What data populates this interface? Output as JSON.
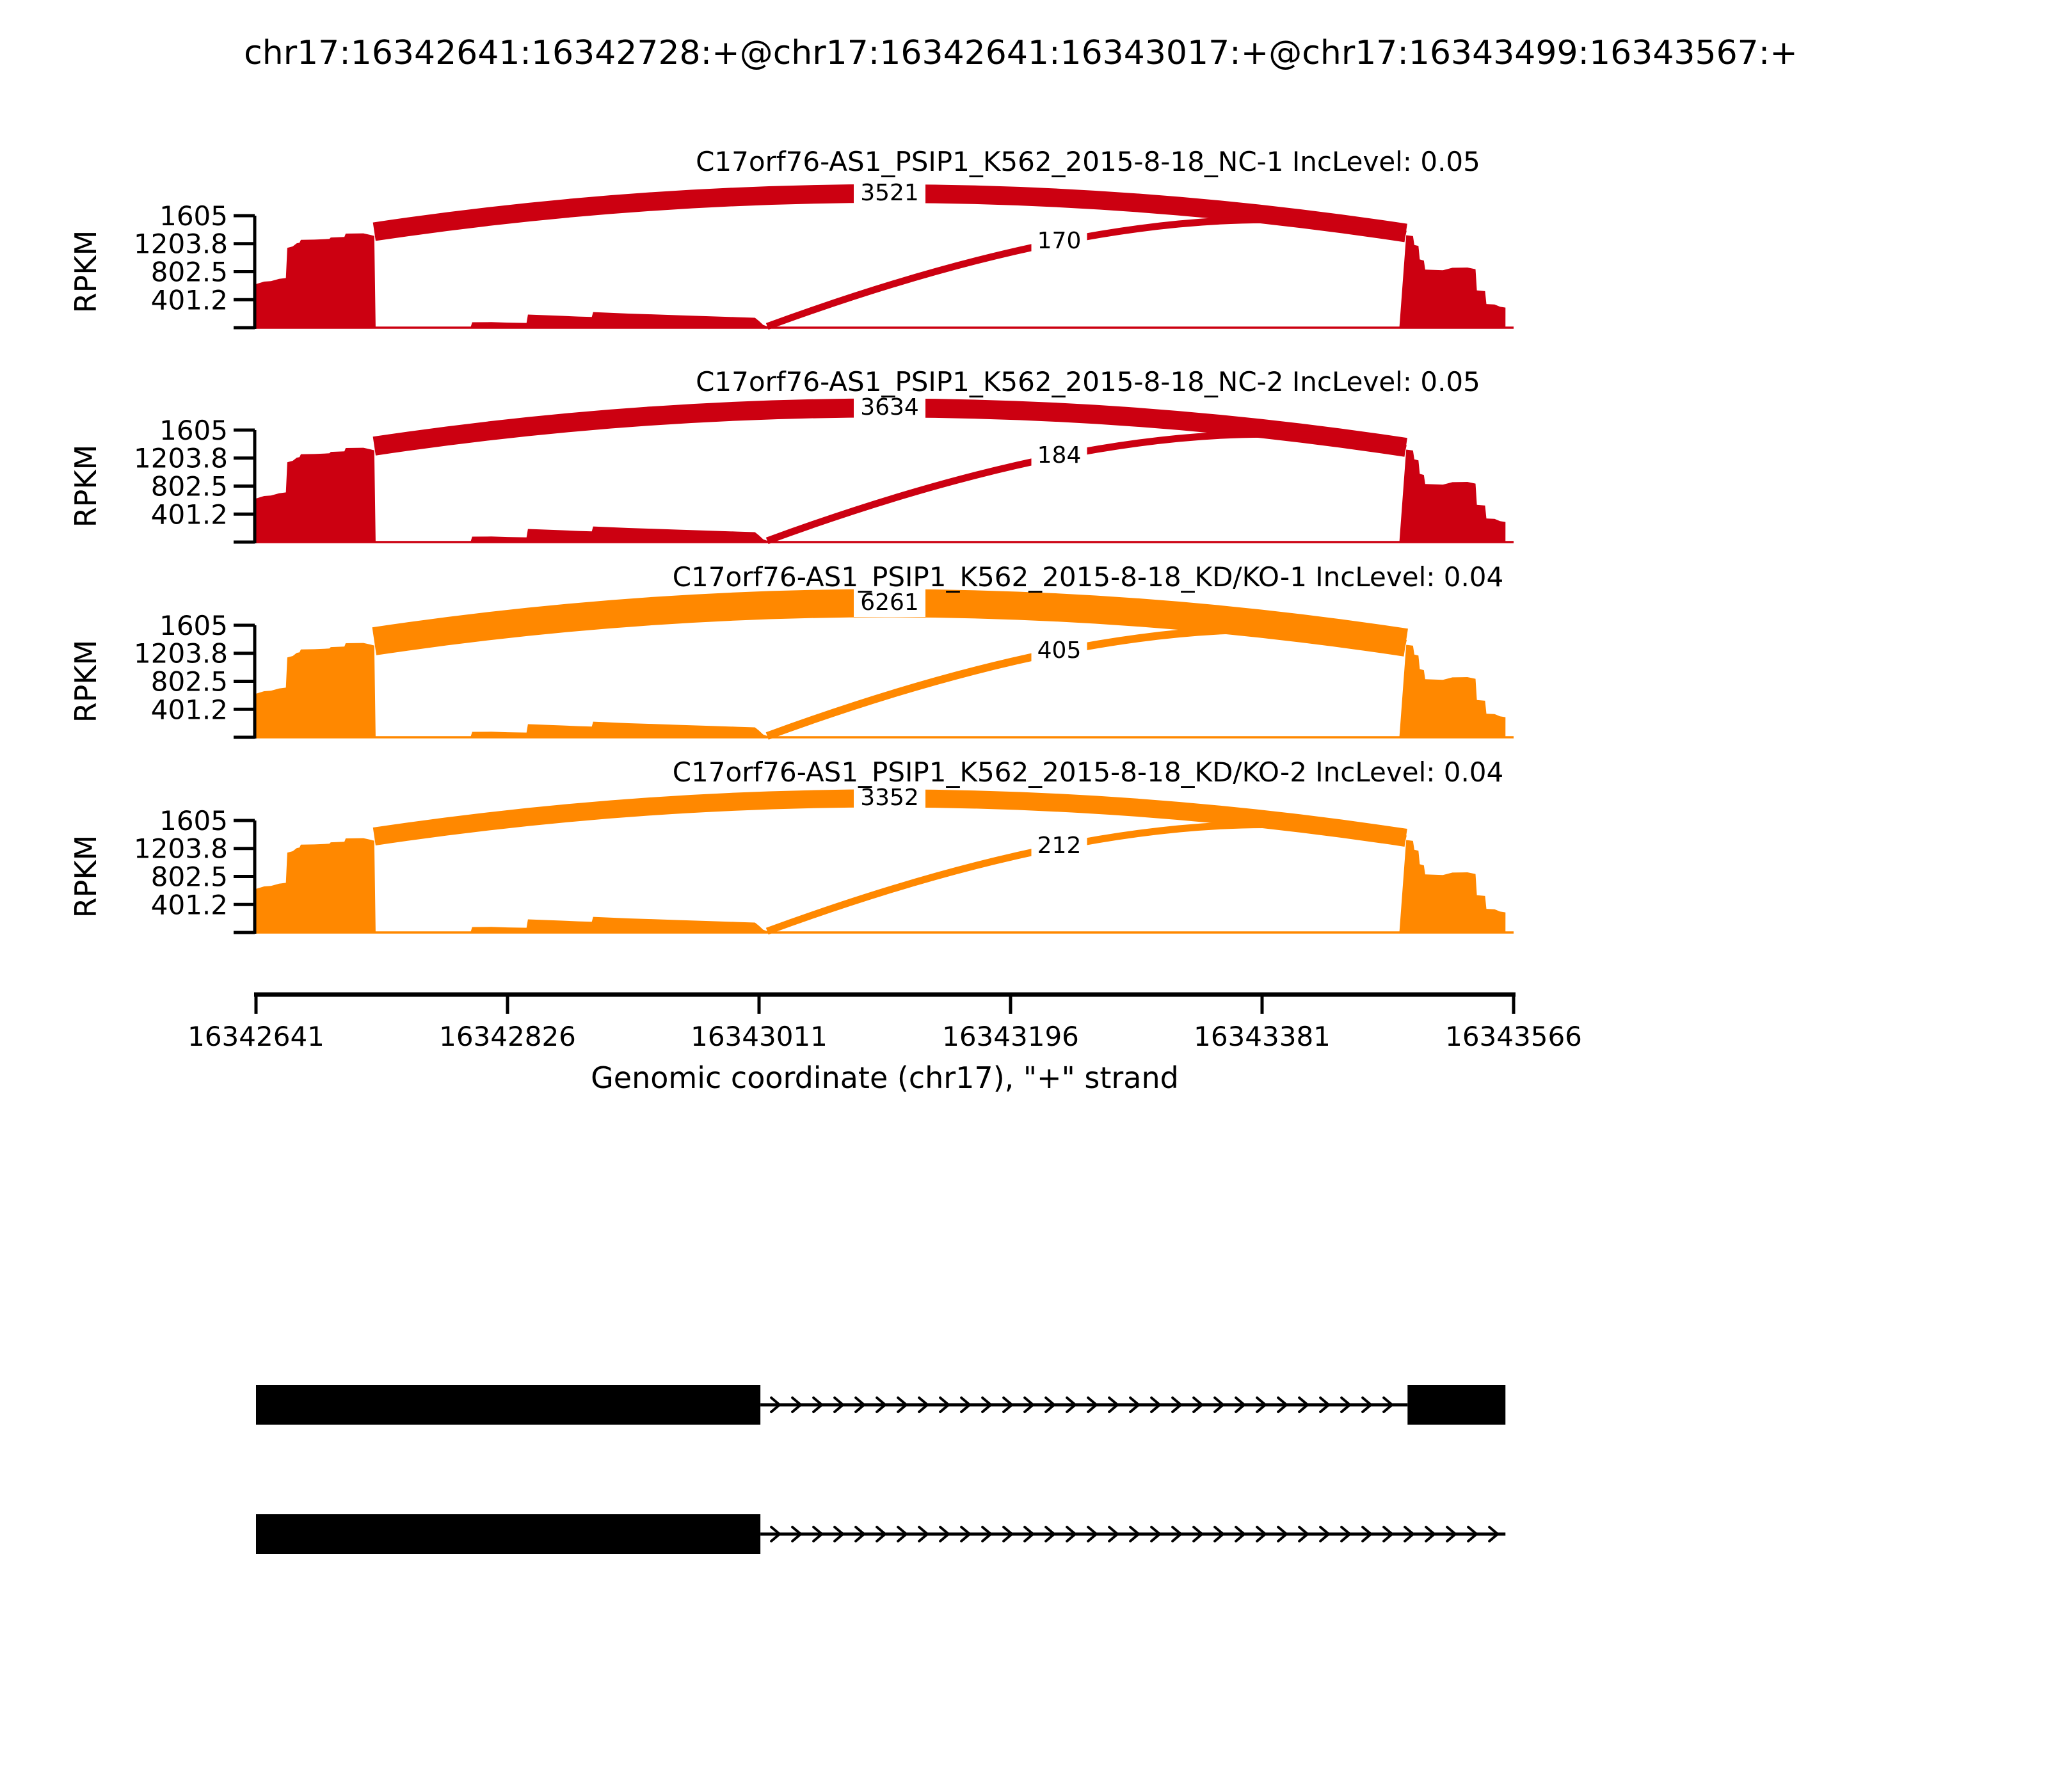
{
  "title": "chr17:16342641:16342728:+@chr17:16342641:16343017:+@chr17:16343499:16343567:+",
  "y_axis": {
    "label": "RPKM",
    "ticks": [
      1605,
      1203.8,
      802.5,
      401.2
    ],
    "max": 1605
  },
  "x_axis": {
    "label": "Genomic coordinate (chr17), \"+\" strand",
    "ticks": [
      16342641,
      16342826,
      16343011,
      16343196,
      16343381,
      16343566
    ],
    "min": 16342641,
    "max": 16343566
  },
  "chart_data": {
    "type": "sashimi",
    "ylabel": "RPKM",
    "xlabel": "Genomic coordinate (chr17), \"+\" strand",
    "y_ticks": [
      1605,
      1203.8,
      802.5,
      401.2
    ],
    "x_ticks": [
      16342641,
      16342826,
      16343011,
      16343196,
      16343381,
      16343566
    ],
    "tracks": [
      {
        "id": "NC-1",
        "label": "C17orf76-AS1_PSIP1_K562_2015-8-18_NC-1 IncLevel: 0.05",
        "inc_level": "0.05",
        "color": "#CC0011",
        "junctions": [
          {
            "from": 16342728,
            "to": 16343499,
            "reads": 3521,
            "style": "thick"
          },
          {
            "from": 16343017,
            "to": 16343499,
            "reads": 170,
            "style": "thin"
          }
        ]
      },
      {
        "id": "NC-2",
        "label": "C17orf76-AS1_PSIP1_K562_2015-8-18_NC-2 IncLevel: 0.05",
        "inc_level": "0.05",
        "color": "#CC0011",
        "junctions": [
          {
            "from": 16342728,
            "to": 16343499,
            "reads": 3634,
            "style": "thick"
          },
          {
            "from": 16343017,
            "to": 16343499,
            "reads": 184,
            "style": "thin"
          }
        ]
      },
      {
        "id": "KD/KO-1",
        "label": "C17orf76-AS1_PSIP1_K562_2015-8-18_KD/KO-1 IncLevel: 0.04",
        "inc_level": "0.04",
        "color": "#FF8800",
        "junctions": [
          {
            "from": 16342728,
            "to": 16343499,
            "reads": 6261,
            "style": "thick"
          },
          {
            "from": 16343017,
            "to": 16343499,
            "reads": 405,
            "style": "thin"
          }
        ]
      },
      {
        "id": "KD/KO-2",
        "label": "C17orf76-AS1_PSIP1_K562_2015-8-18_KD/KO-2 IncLevel: 0.04",
        "inc_level": "0.04",
        "color": "#FF8800",
        "junctions": [
          {
            "from": 16342728,
            "to": 16343499,
            "reads": 3352,
            "style": "thick"
          },
          {
            "from": 16343017,
            "to": 16343499,
            "reads": 212,
            "style": "thin"
          }
        ]
      }
    ],
    "coverage_profile": [
      [
        16342641,
        625
      ],
      [
        16342647,
        660
      ],
      [
        16342652,
        668
      ],
      [
        16342658,
        700
      ],
      [
        16342663,
        712
      ],
      [
        16342664,
        1145
      ],
      [
        16342668,
        1165
      ],
      [
        16342671,
        1210
      ],
      [
        16342673,
        1218
      ],
      [
        16342674,
        1258
      ],
      [
        16342684,
        1262
      ],
      [
        16342695,
        1272
      ],
      [
        16342696,
        1292
      ],
      [
        16342706,
        1300
      ],
      [
        16342707,
        1348
      ],
      [
        16342720,
        1352
      ],
      [
        16342725,
        1330
      ],
      [
        16342728,
        1315
      ],
      [
        16342729,
        14
      ],
      [
        16342760,
        11
      ],
      [
        16342790,
        13
      ],
      [
        16342799,
        14
      ],
      [
        16342800,
        78
      ],
      [
        16342814,
        80
      ],
      [
        16342826,
        72
      ],
      [
        16342840,
        68
      ],
      [
        16342841,
        188
      ],
      [
        16342852,
        180
      ],
      [
        16342866,
        170
      ],
      [
        16342878,
        160
      ],
      [
        16342888,
        153
      ],
      [
        16342889,
        224
      ],
      [
        16342900,
        215
      ],
      [
        16342915,
        202
      ],
      [
        16342932,
        192
      ],
      [
        16342952,
        178
      ],
      [
        16342972,
        165
      ],
      [
        16342995,
        150
      ],
      [
        16343008,
        142
      ],
      [
        16343011,
        95
      ],
      [
        16343014,
        40
      ],
      [
        16343018,
        12
      ],
      [
        16343070,
        9
      ],
      [
        16343140,
        11
      ],
      [
        16343220,
        9
      ],
      [
        16343320,
        10
      ],
      [
        16343420,
        9
      ],
      [
        16343482,
        12
      ],
      [
        16343487,
        1325
      ],
      [
        16343492,
        1312
      ],
      [
        16343493,
        1185
      ],
      [
        16343496,
        1172
      ],
      [
        16343497,
        978
      ],
      [
        16343500,
        962
      ],
      [
        16343501,
        832
      ],
      [
        16343514,
        824
      ],
      [
        16343521,
        858
      ],
      [
        16343532,
        862
      ],
      [
        16343538,
        838
      ],
      [
        16343539,
        535
      ],
      [
        16343545,
        524
      ],
      [
        16343546,
        338
      ],
      [
        16343552,
        332
      ],
      [
        16343556,
        300
      ],
      [
        16343560,
        288
      ]
    ],
    "isoforms": [
      {
        "exons": [
          [
            16342641,
            16343012
          ],
          [
            16343488,
            16343560
          ]
        ],
        "intron": [
          16343012,
          16343488
        ]
      },
      {
        "exons": [
          [
            16342641,
            16343012
          ]
        ],
        "intron": [
          16343012,
          16343560
        ]
      }
    ]
  }
}
